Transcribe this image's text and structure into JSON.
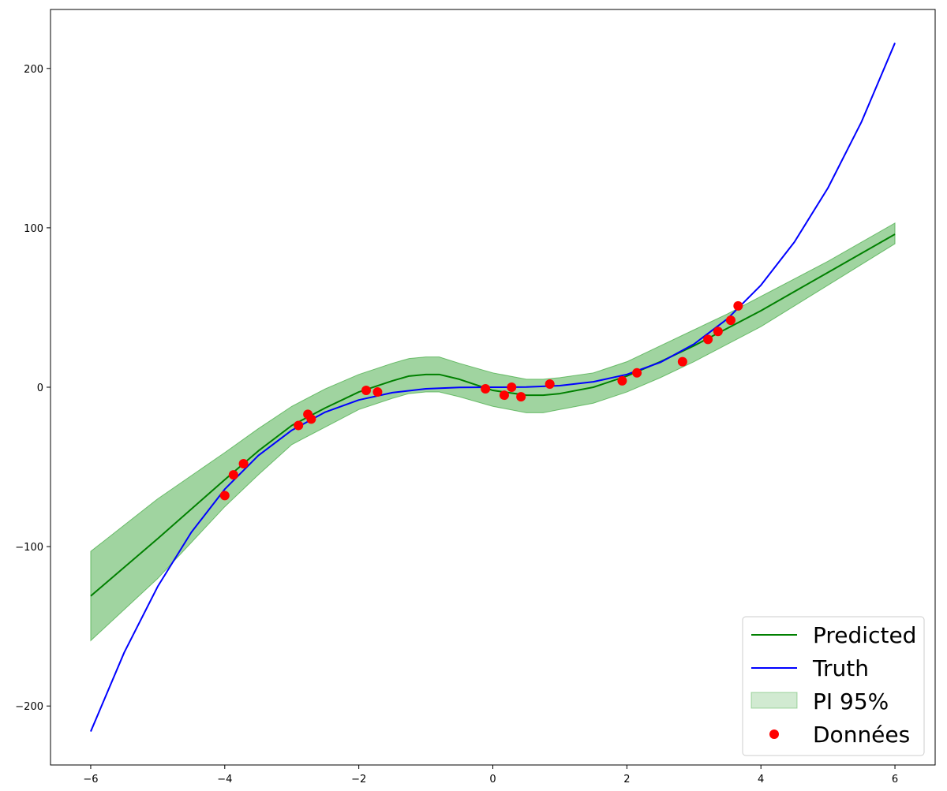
{
  "chart_data": {
    "type": "line",
    "title": "",
    "xlabel": "",
    "ylabel": "",
    "xlim": [
      -6.6,
      6.6
    ],
    "ylim": [
      -237,
      237
    ],
    "xticks": [
      -6,
      -4,
      -2,
      0,
      2,
      4,
      6
    ],
    "xtick_labels": [
      "−6",
      "−4",
      "−2",
      "0",
      "2",
      "4",
      "6"
    ],
    "yticks": [
      -200,
      -100,
      0,
      100,
      200
    ],
    "ytick_labels": [
      "−200",
      "−100",
      "0",
      "100",
      "200"
    ],
    "grid": false,
    "legend_position": "bottom-right",
    "colors": {
      "predicted": "#008000",
      "truth": "#0000ff",
      "interval": "#2ca02c",
      "data": "#ff0000"
    },
    "series": [
      {
        "name": "Predicted",
        "x": [
          -6,
          -5,
          -4,
          -3.5,
          -3,
          -2.5,
          -2,
          -1.5,
          -1.25,
          -1,
          -0.8,
          -0.5,
          0,
          0.5,
          0.75,
          1,
          1.5,
          2,
          2.5,
          3,
          3.5,
          4,
          5,
          6
        ],
        "y": [
          -131,
          -95,
          -58,
          -40,
          -24,
          -13,
          -3,
          4,
          7,
          8,
          8,
          5,
          -2,
          -5,
          -5,
          -4,
          0,
          7,
          16,
          26,
          37,
          48,
          72,
          96
        ]
      },
      {
        "name": "Truth",
        "x": [
          -6,
          -5.5,
          -5,
          -4.5,
          -4,
          -3.5,
          -3,
          -2.5,
          -2,
          -1.5,
          -1,
          -0.5,
          0,
          0.5,
          1,
          1.5,
          2,
          2.5,
          3,
          3.5,
          4,
          4.5,
          5,
          5.5,
          6
        ],
        "y": [
          -216,
          -166.4,
          -125,
          -91.1,
          -64,
          -42.9,
          -27,
          -15.6,
          -8,
          -3.4,
          -1,
          -0.1,
          0,
          0.1,
          1,
          3.4,
          8,
          15.6,
          27,
          42.9,
          64,
          91.1,
          125,
          166.4,
          216
        ]
      },
      {
        "name": "PI 95%",
        "x": [
          -6,
          -5,
          -4,
          -3.5,
          -3,
          -2.5,
          -2,
          -1.5,
          -1.25,
          -1,
          -0.8,
          -0.5,
          0,
          0.5,
          0.75,
          1,
          1.5,
          2,
          2.5,
          3,
          3.5,
          4,
          5,
          6
        ],
        "upper": [
          -103,
          -70,
          -41,
          -26,
          -12,
          -1,
          8,
          15,
          18,
          19,
          19,
          15,
          9,
          5,
          5,
          6,
          9,
          16,
          26,
          36,
          46,
          57,
          79,
          103
        ],
        "lower": [
          -159,
          -120,
          -75,
          -55,
          -36,
          -25,
          -14,
          -7,
          -4,
          -3,
          -3,
          -6,
          -12,
          -16,
          -16,
          -14,
          -10,
          -3,
          6,
          16,
          27,
          38,
          64,
          90
        ]
      },
      {
        "name": "Données",
        "x": [
          -4.0,
          -3.87,
          -3.72,
          -2.9,
          -2.76,
          -2.71,
          -1.89,
          -1.72,
          -0.11,
          0.17,
          0.28,
          0.42,
          0.85,
          1.93,
          2.15,
          2.83,
          3.21,
          3.36,
          3.55,
          3.66
        ],
        "y": [
          -68,
          -55,
          -48,
          -24,
          -17,
          -20,
          -2,
          -3,
          -1,
          -5,
          0,
          -6,
          2,
          4,
          9,
          16,
          30,
          35,
          42,
          51
        ]
      }
    ]
  }
}
